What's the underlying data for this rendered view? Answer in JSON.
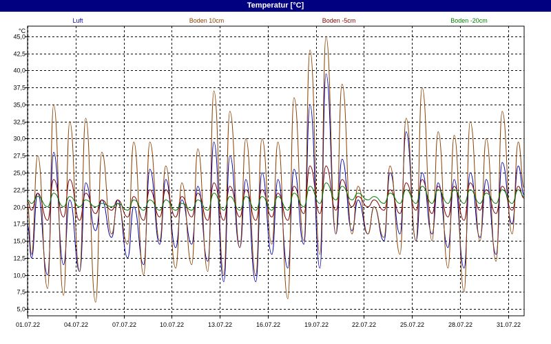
{
  "window_title": "Temperatur [°C]",
  "chart_data": {
    "type": "line",
    "ylabel": "°C",
    "ylim": [
      4,
      46.5
    ],
    "yticks": [
      5.0,
      7.5,
      10.0,
      12.5,
      15.0,
      17.5,
      20.0,
      22.5,
      25.0,
      27.5,
      30.0,
      32.5,
      35.0,
      37.5,
      40.0,
      42.5,
      45.0
    ],
    "ytick_labels": [
      "5,0",
      "7,5",
      "10,0",
      "12,5",
      "15,0",
      "17,5",
      "20,0",
      "22,5",
      "25,0",
      "27,5",
      "30,0",
      "32,5",
      "35,0",
      "37,5",
      "40,0",
      "42,5",
      "45,0"
    ],
    "xlim": [
      "2022-07-01",
      "2022-08-01"
    ],
    "xticks": [
      "2022-07-01",
      "2022-07-04",
      "2022-07-07",
      "2022-07-10",
      "2022-07-13",
      "2022-07-16",
      "2022-07-19",
      "2022-07-22",
      "2022-07-25",
      "2022-07-28",
      "2022-07-31"
    ],
    "xtick_labels": [
      "01.07.22",
      "04.07.22",
      "07.07.22",
      "10.07.22",
      "13.07.22",
      "16.07.22",
      "19.07.22",
      "22.07.22",
      "25.07.22",
      "28.07.22",
      "31.07.22"
    ],
    "grid": true,
    "legend_position": "top",
    "series_style": "daily min/max cycle",
    "series": [
      {
        "name": "Luft",
        "color": "#0000b0",
        "daily_min": [
          12.5,
          10.0,
          11.5,
          10.5,
          16.5,
          15.5,
          12.5,
          11.5,
          14.5,
          14.0,
          14.5,
          12.0,
          9.0,
          14.0,
          9.0,
          13.0,
          11.0,
          14.5,
          11.0,
          16.0,
          16.5,
          16.0,
          15.0,
          16.0,
          15.0,
          16.0,
          14.0,
          11.0,
          15.5,
          13.0,
          17.5
        ],
        "daily_max": [
          22.0,
          28.0,
          21.0,
          23.5,
          21.0,
          21.0,
          20.0,
          25.5,
          24.0,
          21.0,
          23.0,
          29.5,
          27.5,
          24.0,
          25.0,
          24.0,
          25.5,
          35.0,
          39.5,
          27.0,
          21.0,
          20.0,
          25.0,
          31.0,
          25.0,
          23.5,
          24.0,
          25.0,
          24.0,
          26.5,
          26.0
        ]
      },
      {
        "name": "Boden 10cm",
        "color": "#8b4000",
        "daily_min": [
          13.0,
          8.0,
          7.0,
          10.5,
          6.0,
          16.0,
          14.5,
          10.0,
          15.0,
          11.0,
          11.5,
          10.5,
          10.0,
          14.0,
          10.0,
          14.5,
          6.5,
          15.0,
          13.0,
          16.0,
          16.0,
          16.0,
          15.5,
          13.0,
          15.0,
          15.0,
          11.0,
          7.5,
          15.0,
          12.0,
          16.0
        ],
        "daily_max": [
          27.5,
          35.0,
          32.5,
          33.0,
          28.0,
          20.5,
          29.5,
          29.5,
          26.0,
          23.5,
          28.5,
          37.0,
          34.0,
          30.0,
          30.0,
          29.5,
          36.0,
          43.0,
          45.0,
          38.0,
          23.0,
          20.0,
          26.0,
          33.0,
          37.5,
          31.0,
          30.5,
          32.5,
          30.0,
          34.0,
          29.5
        ]
      },
      {
        "name": "Boden -5cm",
        "color": "#800000",
        "daily_min": [
          19.5,
          18.0,
          18.5,
          18.0,
          19.0,
          19.5,
          18.5,
          18.0,
          18.5,
          18.5,
          18.5,
          18.0,
          18.0,
          18.5,
          18.0,
          18.5,
          18.0,
          19.0,
          19.0,
          19.5,
          20.0,
          20.0,
          19.5,
          19.0,
          19.5,
          19.0,
          18.5,
          18.0,
          19.5,
          19.0,
          19.5
        ],
        "daily_max": [
          22.0,
          24.0,
          24.0,
          22.0,
          21.0,
          21.0,
          21.5,
          22.5,
          22.5,
          21.5,
          22.0,
          23.5,
          23.0,
          22.5,
          22.5,
          22.0,
          23.0,
          26.0,
          26.0,
          24.0,
          21.5,
          21.0,
          22.5,
          23.5,
          24.0,
          23.0,
          23.0,
          23.5,
          22.5,
          23.0,
          23.0
        ]
      },
      {
        "name": "Boden -20cm",
        "color": "#008000",
        "daily_min": [
          20.5,
          20.0,
          20.0,
          20.0,
          20.0,
          20.0,
          19.5,
          19.5,
          19.5,
          19.5,
          19.5,
          19.5,
          19.5,
          19.5,
          19.5,
          19.5,
          19.5,
          20.0,
          20.5,
          21.0,
          21.0,
          21.0,
          20.5,
          20.5,
          20.5,
          20.5,
          20.5,
          20.5,
          20.5,
          20.5,
          20.5
        ],
        "daily_max": [
          21.5,
          22.0,
          21.5,
          21.0,
          20.5,
          20.5,
          21.0,
          21.0,
          21.0,
          20.5,
          21.0,
          22.0,
          21.5,
          21.5,
          21.5,
          21.5,
          22.0,
          23.0,
          23.5,
          23.0,
          22.0,
          21.5,
          22.0,
          22.5,
          23.0,
          22.5,
          22.5,
          22.5,
          22.0,
          22.5,
          22.5
        ]
      }
    ]
  }
}
